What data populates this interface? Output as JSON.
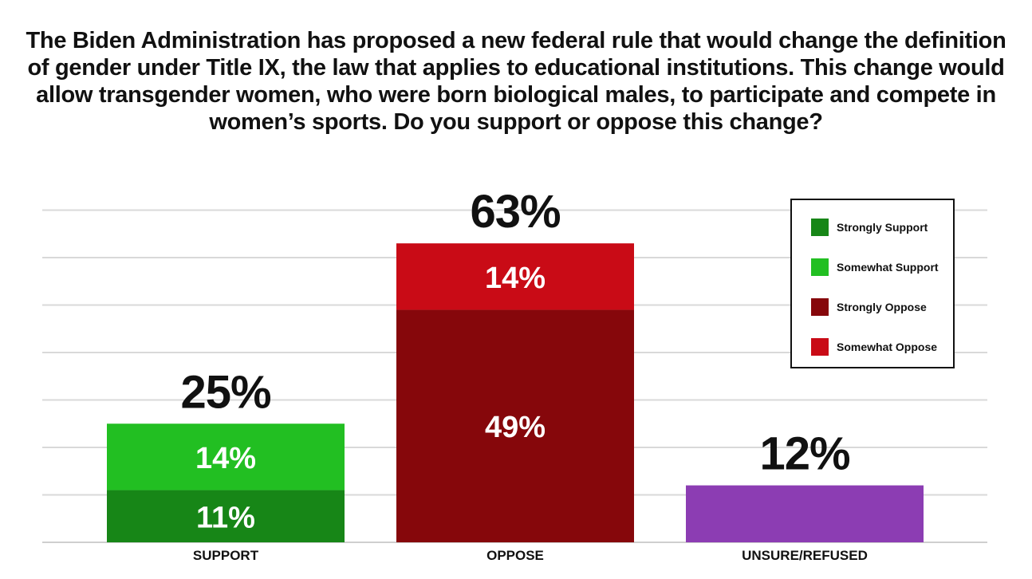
{
  "title": "The Biden Administration has proposed a new federal rule that would change the definition of gender under Title IX, the law that applies to educational institutions. This change would allow transgender women, who were born biological males, to participate and compete in women’s sports. Do you support or oppose this change?",
  "legend": {
    "items": [
      {
        "label": "Strongly Support",
        "color": "#178617"
      },
      {
        "label": "Somewhat Support",
        "color": "#22bf22"
      },
      {
        "label": "Strongly Oppose",
        "color": "#86070b"
      },
      {
        "label": "Somewhat Oppose",
        "color": "#c90b16"
      }
    ]
  },
  "chart_data": {
    "type": "bar",
    "stacked": true,
    "title": "The Biden Administration has proposed a new federal rule that would change the definition of gender under Title IX, the law that applies to educational institutions. This change would allow transgender women, who were born biological males, to participate and compete in women’s sports. Do you support or oppose this change?",
    "categories": [
      "SUPPORT",
      "OPPOSE",
      "UNSURE/REFUSED"
    ],
    "totals": [
      "25%",
      "63%",
      "12%"
    ],
    "series": [
      {
        "name": "Strongly Support",
        "color": "#178617",
        "values": [
          11,
          0,
          0
        ],
        "labels": [
          "11%",
          "",
          ""
        ]
      },
      {
        "name": "Somewhat Support",
        "color": "#22bf22",
        "values": [
          14,
          0,
          0
        ],
        "labels": [
          "14%",
          "",
          ""
        ]
      },
      {
        "name": "Strongly Oppose",
        "color": "#86070b",
        "values": [
          0,
          49,
          0
        ],
        "labels": [
          "",
          "49%",
          ""
        ]
      },
      {
        "name": "Somewhat Oppose",
        "color": "#c90b16",
        "values": [
          0,
          14,
          0
        ],
        "labels": [
          "",
          "14%",
          ""
        ]
      },
      {
        "name": "Unsure/Refused",
        "color": "#8c3db3",
        "values": [
          0,
          0,
          12
        ],
        "labels": [
          "",
          "",
          ""
        ]
      }
    ],
    "ylim": [
      0,
      70
    ],
    "grid": true,
    "xlabel": "",
    "ylabel": "",
    "legend_position": "top-right"
  }
}
